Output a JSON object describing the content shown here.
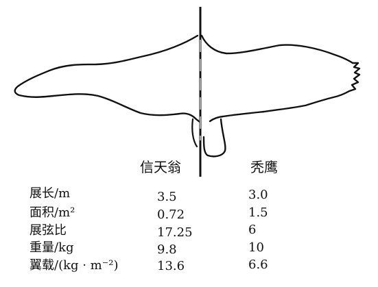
{
  "columns": {
    "albatross": "信天翁",
    "eagle": "秃鹰"
  },
  "rows": [
    {
      "label": "展长/m",
      "albatross": "3.5",
      "eagle": "3.0"
    },
    {
      "label": "面积/m²",
      "albatross": "0.72",
      "eagle": "1.5"
    },
    {
      "label": "展弦比",
      "albatross": "17.25",
      "eagle": "6"
    },
    {
      "label": "重量/kg",
      "albatross": "9.8",
      "eagle": "10"
    },
    {
      "label": "翼载/(kg · m⁻²)",
      "albatross": "13.6",
      "eagle": "6.6"
    }
  ]
}
